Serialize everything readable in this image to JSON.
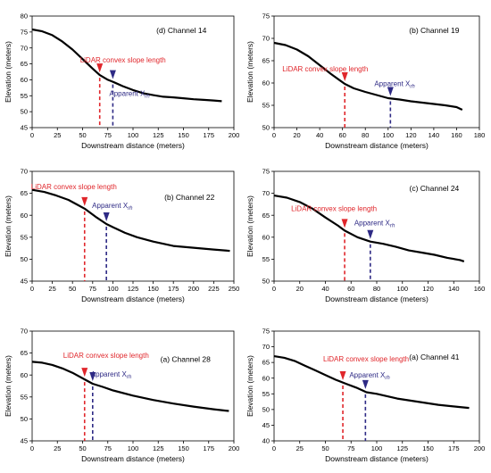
{
  "colors": {
    "lidar": "#e0262b",
    "apparent": "#2e2a85",
    "curve": "#000000"
  },
  "chart_data": [
    {
      "type": "line",
      "title": "(d) Channel 14",
      "xlabel": "Downstream distance (meters)",
      "ylabel": "Elevation (meters)",
      "xlim": [
        0,
        200
      ],
      "ylim": [
        45,
        80
      ],
      "xticks": [
        "0",
        "25",
        "50",
        "75",
        "100",
        "125",
        "150",
        "175",
        "200"
      ],
      "yticks": [
        "45",
        "50",
        "55",
        "60",
        "65",
        "70",
        "75",
        "80"
      ],
      "x": [
        0,
        10,
        20,
        30,
        40,
        50,
        60,
        67,
        75,
        80,
        90,
        100,
        110,
        120,
        130,
        140,
        150,
        160,
        170,
        180,
        188
      ],
      "y": [
        75.8,
        75.2,
        74.0,
        72.0,
        69.5,
        66.5,
        63.5,
        61.5,
        60.0,
        59.4,
        58.0,
        56.8,
        55.8,
        55.2,
        54.7,
        54.5,
        54.2,
        53.9,
        53.7,
        53.5,
        53.3
      ],
      "annotations": [
        {
          "label": "LiDAR convex slope length",
          "x": 67,
          "y": 61.5
        },
        {
          "label": "Apparent X",
          "subscript": "rh",
          "x": 80,
          "y": 59.4
        }
      ]
    },
    {
      "type": "line",
      "title": "(b) Channel 19",
      "xlabel": "Downstream distance (meters)",
      "ylabel": "Elevation (meters)",
      "xlim": [
        0,
        180
      ],
      "ylim": [
        50,
        75
      ],
      "xticks": [
        "0",
        "20",
        "40",
        "60",
        "80",
        "100",
        "120",
        "140",
        "160",
        "180"
      ],
      "yticks": [
        "50",
        "55",
        "60",
        "65",
        "70",
        "75"
      ],
      "x": [
        0,
        10,
        20,
        30,
        40,
        50,
        62,
        70,
        80,
        90,
        100,
        110,
        120,
        130,
        140,
        150,
        160,
        165
      ],
      "y": [
        69.0,
        68.5,
        67.5,
        66.0,
        64.0,
        62.0,
        59.8,
        58.8,
        58.0,
        57.3,
        56.6,
        56.3,
        55.9,
        55.6,
        55.3,
        55.0,
        54.6,
        54.0
      ],
      "annotations": [
        {
          "label": "LiDAR convex slope length",
          "x": 62,
          "y": 59.8
        },
        {
          "label": "Apparent X",
          "subscript": "rh",
          "x": 102,
          "y": 56.5
        }
      ]
    },
    {
      "type": "line",
      "title": "(b) Channel 22",
      "xlabel": "Downstream distance (meters)",
      "ylabel": "Elevation (meters)",
      "xlim": [
        0,
        250
      ],
      "ylim": [
        45,
        70
      ],
      "xticks": [
        "0",
        "25",
        "50",
        "75",
        "100",
        "125",
        "150",
        "175",
        "200",
        "225",
        "250"
      ],
      "yticks": [
        "45",
        "50",
        "55",
        "60",
        "65",
        "70"
      ],
      "x": [
        0,
        15,
        30,
        45,
        55,
        65,
        80,
        92,
        100,
        115,
        130,
        150,
        175,
        200,
        225,
        245
      ],
      "y": [
        65.8,
        65.3,
        64.5,
        63.5,
        62.5,
        61.5,
        59.5,
        58.0,
        57.3,
        56.0,
        55.0,
        54.0,
        53.0,
        52.6,
        52.2,
        51.9
      ],
      "annotations": [
        {
          "label": "LiDAR convex slope length",
          "x": 65,
          "y": 61.5
        },
        {
          "label": "Apparent X",
          "subscript": "rh",
          "x": 92,
          "y": 58.0
        }
      ]
    },
    {
      "type": "line",
      "title": "(c) Channel 24",
      "xlabel": "Downstream distance (meters)",
      "ylabel": "Elevation (meters)",
      "xlim": [
        0,
        160
      ],
      "ylim": [
        50,
        75
      ],
      "xticks": [
        "0",
        "20",
        "40",
        "60",
        "80",
        "100",
        "120",
        "140",
        "160"
      ],
      "yticks": [
        "50",
        "55",
        "60",
        "65",
        "70",
        "75"
      ],
      "x": [
        0,
        10,
        20,
        30,
        40,
        50,
        55,
        65,
        75,
        85,
        95,
        105,
        115,
        125,
        135,
        145,
        148
      ],
      "y": [
        69.5,
        69.0,
        68.0,
        66.5,
        64.5,
        62.6,
        61.5,
        60.0,
        59.0,
        58.5,
        57.8,
        57.0,
        56.5,
        56.0,
        55.3,
        54.8,
        54.5
      ],
      "annotations": [
        {
          "label": "LiDAR convex slope length",
          "x": 55,
          "y": 61.5
        },
        {
          "label": "Apparent X",
          "subscript": "rh",
          "x": 75,
          "y": 59.0
        }
      ]
    },
    {
      "type": "line",
      "title": "(a) Channel 28",
      "xlabel": "Downstream distance (meters)",
      "ylabel": "Elevation (meters)",
      "xlim": [
        0,
        200
      ],
      "ylim": [
        45,
        70
      ],
      "xticks": [
        "0",
        "25",
        "50",
        "75",
        "100",
        "125",
        "150",
        "175",
        "200"
      ],
      "yticks": [
        "45",
        "50",
        "55",
        "60",
        "65",
        "70"
      ],
      "x": [
        0,
        10,
        20,
        30,
        40,
        52,
        60,
        70,
        80,
        100,
        120,
        140,
        160,
        180,
        195
      ],
      "y": [
        63.0,
        62.8,
        62.3,
        61.5,
        60.5,
        59.0,
        58.0,
        57.3,
        56.5,
        55.3,
        54.3,
        53.5,
        52.8,
        52.2,
        51.8
      ],
      "annotations": [
        {
          "label": "LiDAR convex slope length",
          "x": 52,
          "y": 59.0
        },
        {
          "label": "Apparent X",
          "subscript": "rh",
          "x": 60,
          "y": 58.0
        }
      ]
    },
    {
      "type": "line",
      "title": "(a) Channel 41",
      "xlabel": "Downstream distance (meters)",
      "ylabel": "Elevation (meters)",
      "xlim": [
        0,
        200
      ],
      "ylim": [
        40,
        75
      ],
      "xticks": [
        "0",
        "25",
        "50",
        "75",
        "100",
        "125",
        "150",
        "175",
        "200"
      ],
      "yticks": [
        "40",
        "45",
        "50",
        "55",
        "60",
        "65",
        "70",
        "75"
      ],
      "x": [
        0,
        10,
        20,
        30,
        40,
        50,
        60,
        70,
        80,
        90,
        100,
        120,
        140,
        160,
        180,
        190
      ],
      "y": [
        67.0,
        66.5,
        65.5,
        64.0,
        62.5,
        61.0,
        59.5,
        58.2,
        57.0,
        55.5,
        55.0,
        53.5,
        52.5,
        51.5,
        50.8,
        50.5
      ],
      "annotations": [
        {
          "label": "LiDAR convex slope length",
          "x": 67,
          "y": 58.5
        },
        {
          "label": "Apparent X",
          "subscript": "rh",
          "x": 89,
          "y": 55.7
        }
      ]
    }
  ]
}
